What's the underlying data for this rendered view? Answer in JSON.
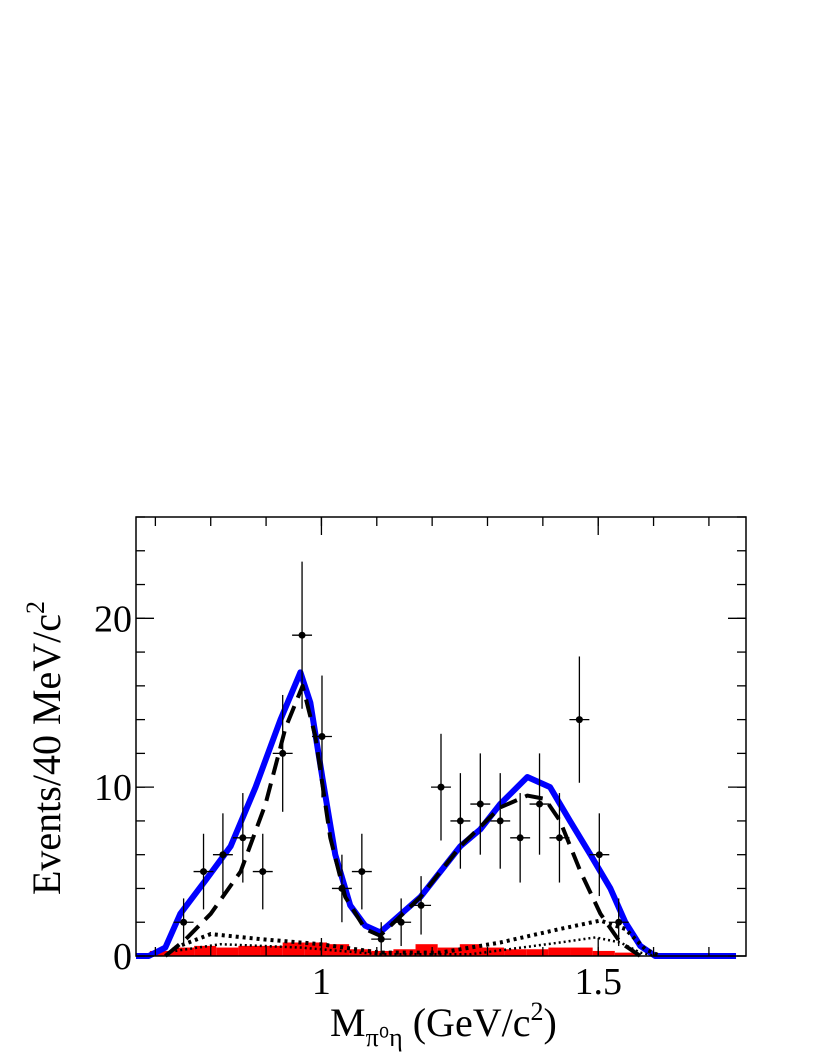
{
  "chart_data": {
    "type": "scatter",
    "xlabel": {
      "main": "M",
      "sub": "π⁰η",
      "rest": " (GeV/c",
      "sup": "2",
      "end": ")"
    },
    "ylabel": {
      "main": "Events/40 MeV/c",
      "sup": "2"
    },
    "xlim": [
      0.665,
      1.767
    ],
    "ylim": [
      0,
      26
    ],
    "xticks": [
      1,
      1.5
    ],
    "yticks": [
      0,
      10,
      20
    ],
    "points": {
      "color": "#000000",
      "x": [
        0.751,
        0.787,
        0.822,
        0.858,
        0.894,
        0.93,
        0.965,
        1.001,
        1.037,
        1.073,
        1.108,
        1.144,
        1.18,
        1.216,
        1.251,
        1.287,
        1.323,
        1.359,
        1.394,
        1.43,
        1.466,
        1.502,
        1.537
      ],
      "values": [
        2,
        5,
        6,
        7,
        5,
        12,
        19,
        13,
        4,
        5,
        1,
        2,
        3,
        10,
        8,
        9,
        8,
        7,
        9,
        7,
        14,
        6,
        2
      ],
      "yerr": [
        1.41,
        2.24,
        2.45,
        2.65,
        2.24,
        3.46,
        4.36,
        3.61,
        2,
        2.24,
        1,
        1.41,
        1.73,
        3.16,
        2.83,
        3,
        2.83,
        2.65,
        3,
        2.65,
        3.74,
        2.45,
        1.41
      ],
      "xerr": 0.018
    },
    "lines": [
      {
        "color": "#0000ff",
        "style": "solid-thick",
        "x": [
          0.665,
          0.688,
          0.718,
          0.745,
          0.791,
          0.836,
          0.881,
          0.926,
          0.962,
          0.98,
          1.002,
          1.025,
          1.052,
          1.079,
          1.106,
          1.179,
          1.251,
          1.287,
          1.323,
          1.372,
          1.413,
          1.449,
          1.486,
          1.522,
          1.549,
          1.576,
          1.603,
          1.749
        ],
        "values": [
          0,
          0,
          0.5,
          2.5,
          4.5,
          6.5,
          10,
          14,
          16.8,
          15,
          10.5,
          6,
          3,
          1.8,
          1.4,
          3.5,
          6.5,
          7.5,
          9,
          10.6,
          10,
          8,
          6,
          4,
          2,
          0.6,
          0,
          0
        ]
      },
      {
        "color": "#000000",
        "style": "dashed",
        "x": [
          0.718,
          0.755,
          0.8,
          0.854,
          0.899,
          0.935,
          0.966,
          0.989,
          1.016,
          1.043,
          1.079,
          1.106,
          1.179,
          1.251,
          1.323,
          1.372,
          1.404,
          1.431,
          1.468,
          1.504,
          1.54,
          1.576
        ],
        "values": [
          0,
          1,
          2.5,
          5,
          9,
          13.5,
          16,
          13,
          7,
          3.5,
          1.6,
          1.2,
          3.5,
          6.5,
          8.8,
          9.5,
          9.3,
          8,
          5,
          2.5,
          0.8,
          0
        ]
      },
      {
        "color": "#000000",
        "style": "dotted-thick",
        "x": [
          0.736,
          0.8,
          0.89,
          0.998,
          1.106,
          1.215,
          1.323,
          1.431,
          1.504,
          1.549,
          1.585,
          1.612
        ],
        "values": [
          0.5,
          1.3,
          1,
          0.7,
          0.2,
          0.2,
          0.8,
          1.6,
          2.1,
          1.6,
          0.4,
          0
        ]
      },
      {
        "color": "#000000",
        "style": "dotted",
        "x": [
          0.736,
          0.818,
          0.962,
          1.106,
          1.269,
          1.431,
          1.495,
          1.54,
          1.576,
          1.603
        ],
        "values": [
          0.3,
          0.7,
          0.5,
          0.1,
          0.1,
          0.8,
          1.1,
          0.8,
          0.2,
          0
        ]
      }
    ],
    "histogram": {
      "color": "#ff0000",
      "bins": [
        0.69,
        0.73,
        0.77,
        0.81,
        0.85,
        0.89,
        0.93,
        0.97,
        1.01,
        1.05,
        1.09,
        1.13,
        1.17,
        1.21,
        1.25,
        1.29,
        1.33,
        1.37,
        1.41,
        1.45,
        1.49,
        1.53,
        1.57
      ],
      "values": [
        0.3,
        0.5,
        0.6,
        0.5,
        0.6,
        0.6,
        0.8,
        0.8,
        0.7,
        0.4,
        0.3,
        0.4,
        0.7,
        0.5,
        0.7,
        0.5,
        0.4,
        0.4,
        0.5,
        0.5,
        0.3,
        0.2
      ]
    }
  }
}
